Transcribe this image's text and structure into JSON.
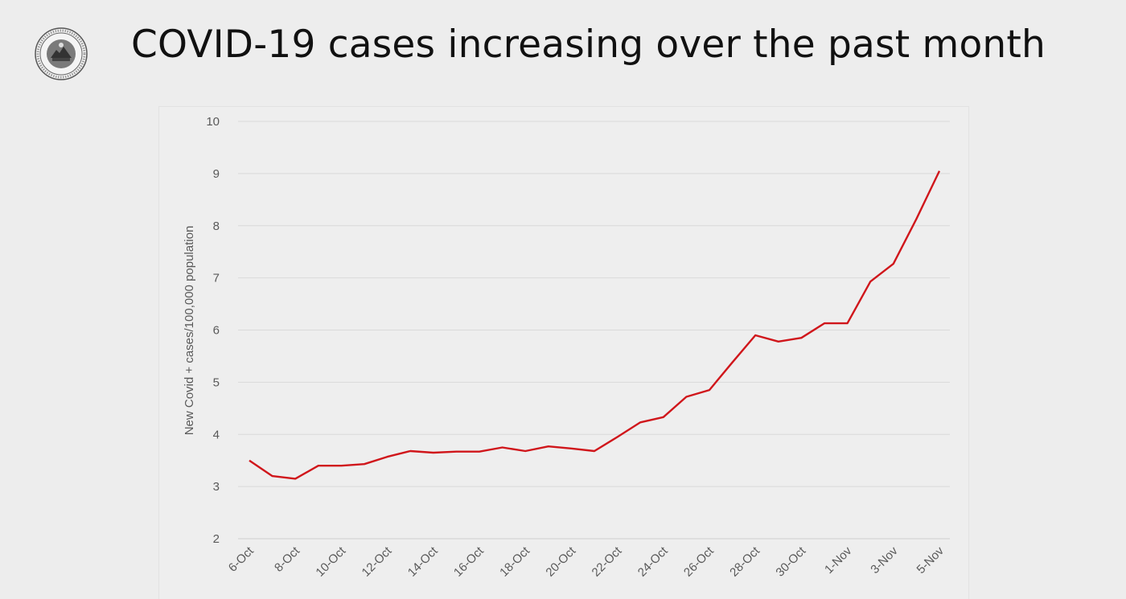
{
  "slide": {
    "title": "COVID-19 cases increasing over the past month",
    "logo": "city-county-seal-icon"
  },
  "colors": {
    "line": "#d0161b",
    "grid": "#d9d9d9",
    "axis_text": "#595959",
    "title": "#111111"
  },
  "chart_data": {
    "type": "line",
    "title": "COVID-19 cases increasing over the past month",
    "xlabel": "",
    "ylabel": "New Covid + cases/100,000 population",
    "ylim": [
      2,
      10
    ],
    "yticks": [
      2,
      3,
      4,
      5,
      6,
      7,
      8,
      9,
      10
    ],
    "grid": true,
    "legend": "none",
    "x_tick_labels": [
      "6-Oct",
      "8-Oct",
      "10-Oct",
      "12-Oct",
      "14-Oct",
      "16-Oct",
      "18-Oct",
      "20-Oct",
      "22-Oct",
      "24-Oct",
      "26-Oct",
      "28-Oct",
      "30-Oct",
      "1-Nov",
      "3-Nov",
      "5-Nov"
    ],
    "x": [
      "6-Oct",
      "7-Oct",
      "8-Oct",
      "9-Oct",
      "10-Oct",
      "11-Oct",
      "12-Oct",
      "13-Oct",
      "14-Oct",
      "15-Oct",
      "16-Oct",
      "17-Oct",
      "18-Oct",
      "19-Oct",
      "20-Oct",
      "21-Oct",
      "22-Oct",
      "23-Oct",
      "24-Oct",
      "25-Oct",
      "26-Oct",
      "27-Oct",
      "28-Oct",
      "29-Oct",
      "30-Oct",
      "31-Oct",
      "1-Nov",
      "2-Nov",
      "3-Nov",
      "4-Nov",
      "5-Nov"
    ],
    "series": [
      {
        "values": [
          3.5,
          3.2,
          3.15,
          3.4,
          3.4,
          3.43,
          3.57,
          3.68,
          3.65,
          3.67,
          3.67,
          3.75,
          3.68,
          3.77,
          3.73,
          3.68,
          3.95,
          4.23,
          4.33,
          4.72,
          4.85,
          5.38,
          5.9,
          5.78,
          5.85,
          6.13,
          6.13,
          6.93,
          7.27,
          8.13,
          9.05
        ]
      }
    ]
  }
}
